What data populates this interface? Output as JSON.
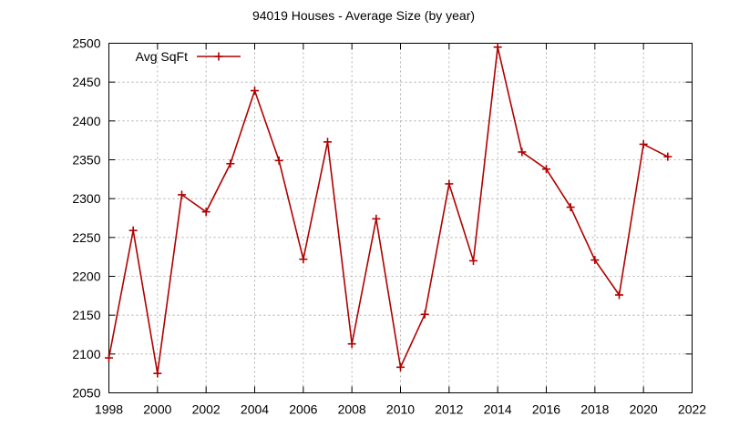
{
  "chart_data": {
    "type": "line",
    "title": "94019 Houses - Average Size (by year)",
    "xlabel": "",
    "ylabel": "",
    "xlim": [
      1998,
      2022
    ],
    "ylim": [
      2050,
      2500
    ],
    "x_ticks": [
      1998,
      2000,
      2002,
      2004,
      2006,
      2008,
      2010,
      2012,
      2014,
      2016,
      2018,
      2020,
      2022
    ],
    "y_ticks": [
      2050,
      2100,
      2150,
      2200,
      2250,
      2300,
      2350,
      2400,
      2450,
      2500
    ],
    "grid": true,
    "legend_position": "top-left",
    "series": [
      {
        "name": "Avg SqFt",
        "color": "#b00000",
        "marker": "plus",
        "x": [
          1998,
          1999,
          2000,
          2001,
          2002,
          2003,
          2004,
          2005,
          2006,
          2007,
          2008,
          2009,
          2010,
          2011,
          2012,
          2013,
          2014,
          2015,
          2016,
          2017,
          2018,
          2019,
          2020,
          2021
        ],
        "y": [
          2095,
          2259,
          2075,
          2305,
          2283,
          2345,
          2439,
          2349,
          2222,
          2373,
          2113,
          2274,
          2083,
          2151,
          2319,
          2220,
          2495,
          2360,
          2338,
          2289,
          2221,
          2176,
          2370,
          2354
        ]
      }
    ]
  }
}
